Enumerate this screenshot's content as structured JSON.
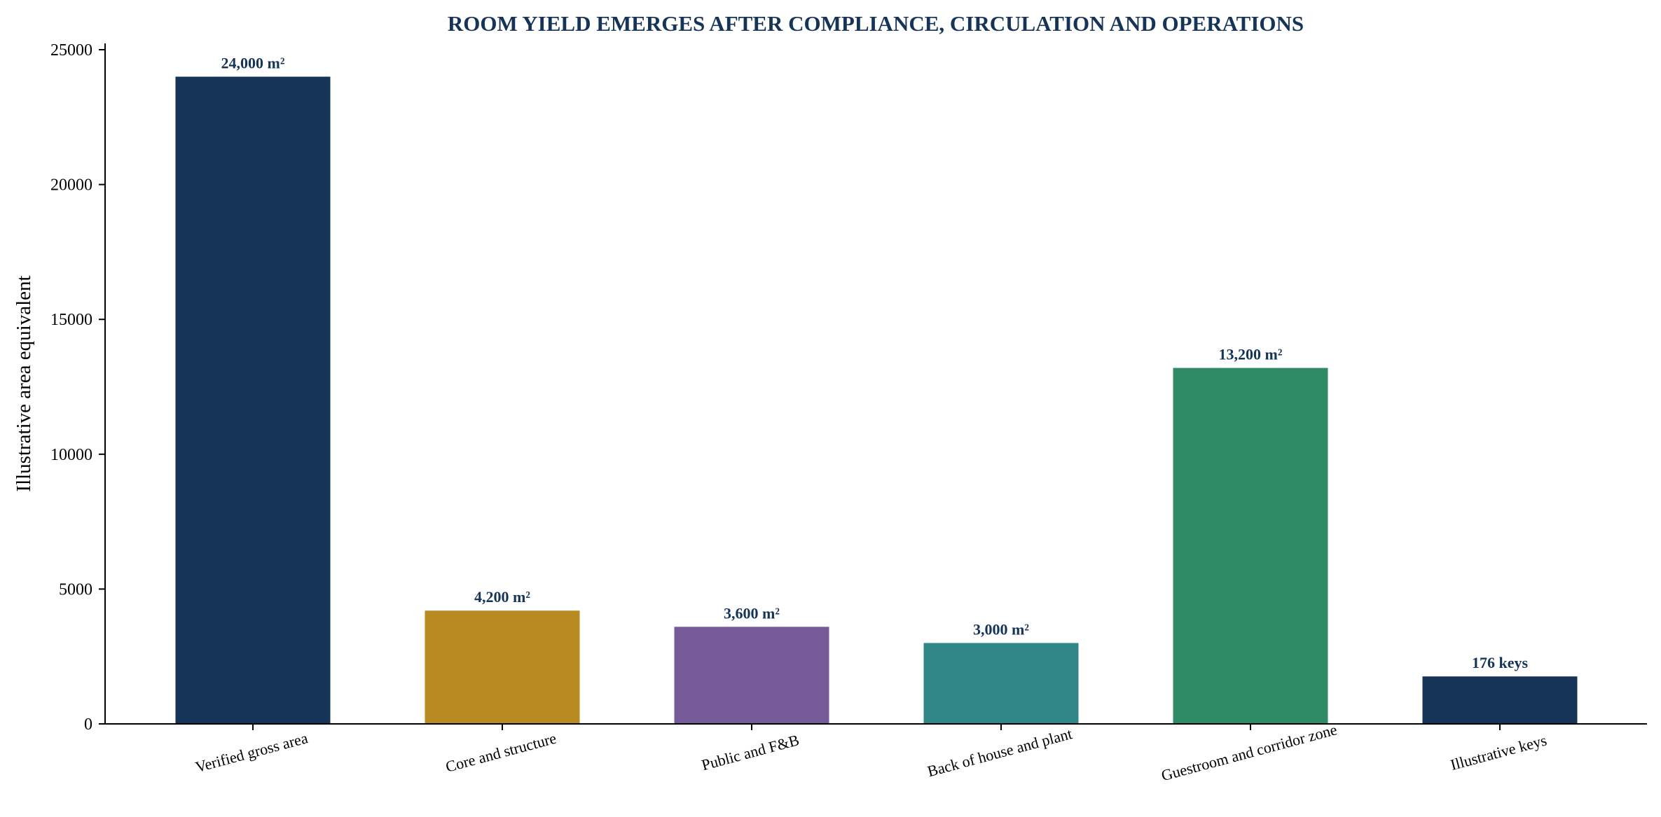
{
  "chart_data": {
    "type": "bar",
    "title": "ROOM YIELD EMERGES AFTER COMPLIANCE, CIRCULATION AND OPERATIONS",
    "xlabel": "",
    "ylabel": "Illustrative area equivalent",
    "ylim": [
      0,
      25000
    ],
    "yticks": [
      0,
      5000,
      10000,
      15000,
      20000,
      25000
    ],
    "ytick_labels": [
      "0",
      "5000",
      "10000",
      "15000",
      "20000",
      "25000"
    ],
    "grid": false,
    "legend": "none",
    "categories": [
      "Verified gross area",
      "Core and structure",
      "Public and F&B",
      "Back of house and plant",
      "Guestroom and corridor zone",
      "Illustrative keys"
    ],
    "values": [
      24000,
      4200,
      3600,
      3000,
      13200,
      1760
    ],
    "data_labels": [
      "24,000 m²",
      "4,200 m²",
      "3,600 m²",
      "3,000 m²",
      "13,200 m²",
      "176 keys"
    ],
    "colors": [
      "#163457",
      "#b88a22",
      "#765998",
      "#318787",
      "#2f8a66",
      "#163457"
    ]
  }
}
